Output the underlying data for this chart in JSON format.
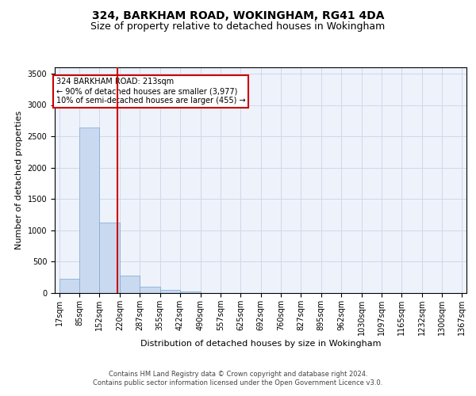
{
  "title": "324, BARKHAM ROAD, WOKINGHAM, RG41 4DA",
  "subtitle": "Size of property relative to detached houses in Wokingham",
  "xlabel": "Distribution of detached houses by size in Wokingham",
  "ylabel": "Number of detached properties",
  "footer_line1": "Contains HM Land Registry data © Crown copyright and database right 2024.",
  "footer_line2": "Contains public sector information licensed under the Open Government Licence v3.0.",
  "annotation_title": "324 BARKHAM ROAD: 213sqm",
  "annotation_line1": "← 90% of detached houses are smaller (3,977)",
  "annotation_line2": "10% of semi-detached houses are larger (455) →",
  "bin_edges": [
    17,
    85,
    152,
    220,
    287,
    355,
    422,
    490,
    557,
    625,
    692,
    760,
    827,
    895,
    962,
    1030,
    1097,
    1165,
    1232,
    1300,
    1367
  ],
  "bar_heights": [
    230,
    2640,
    1130,
    275,
    100,
    50,
    25,
    0,
    0,
    0,
    0,
    0,
    0,
    0,
    0,
    0,
    0,
    0,
    0,
    0
  ],
  "bar_color": "#c9d9f0",
  "bar_edge_color": "#7aa5d0",
  "grid_color": "#d0d8e8",
  "background_color": "#eef2fb",
  "vline_color": "#cc0000",
  "vline_x": 213,
  "ylim": [
    0,
    3600
  ],
  "yticks": [
    0,
    500,
    1000,
    1500,
    2000,
    2500,
    3000,
    3500
  ],
  "annotation_box_color": "#ffffff",
  "annotation_box_edge": "#cc0000",
  "title_fontsize": 10,
  "subtitle_fontsize": 9,
  "tick_fontsize": 7,
  "ylabel_fontsize": 8,
  "xlabel_fontsize": 8,
  "footer_fontsize": 6
}
